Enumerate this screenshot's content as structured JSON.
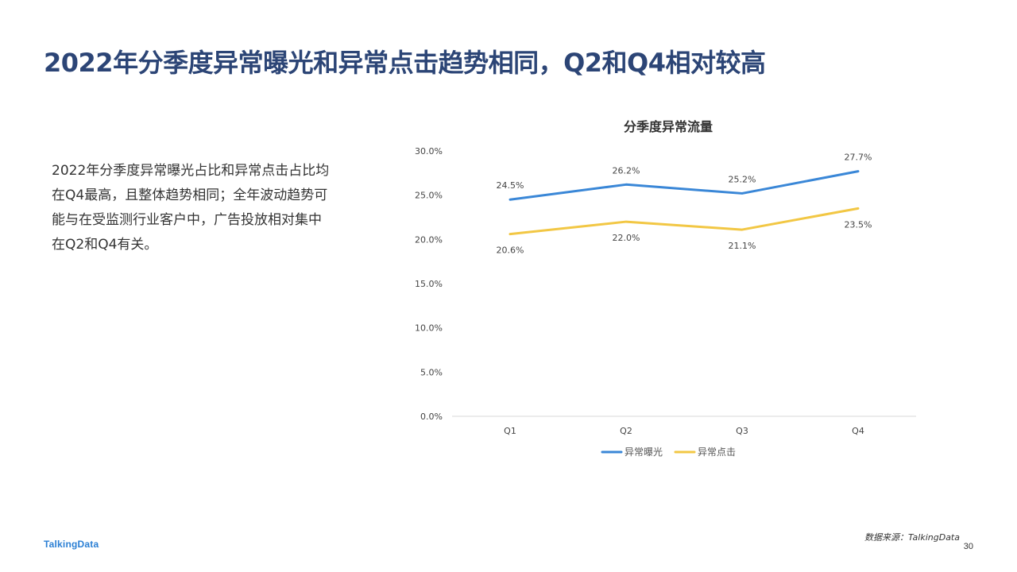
{
  "page": {
    "title": "2022年分季度异常曝光和异常点击趋势相同，Q2和Q4相对较高",
    "summary": "2022年分季度异常曝光占比和异常点击占比均在Q4最高，且整体趋势相同；全年波动趋势可能与在受监测行业客户中，广告投放相对集中在Q2和Q4有关。",
    "footer": {
      "logo": "TalkingData",
      "source": "数据来源：TalkingData",
      "page_number": "30"
    }
  },
  "chart_data": {
    "type": "line",
    "title": "分季度异常流量",
    "categories": [
      "Q1",
      "Q2",
      "Q3",
      "Q4"
    ],
    "series": [
      {
        "name": "异常曝光",
        "color": "#3a87d7",
        "values": [
          24.5,
          26.2,
          25.2,
          27.7
        ],
        "labels": [
          "24.5%",
          "26.2%",
          "25.2%",
          "27.7%"
        ],
        "label_position": "above"
      },
      {
        "name": "异常点击",
        "color": "#f2c744",
        "values": [
          20.6,
          22.0,
          21.1,
          23.5
        ],
        "labels": [
          "20.6%",
          "22.0%",
          "21.1%",
          "23.5%"
        ],
        "label_position": "below"
      }
    ],
    "y_ticks": [
      "0.0%",
      "5.0%",
      "10.0%",
      "15.0%",
      "20.0%",
      "25.0%",
      "30.0%"
    ],
    "ylim": [
      0,
      30
    ],
    "grid": false,
    "legend": "bottom"
  }
}
